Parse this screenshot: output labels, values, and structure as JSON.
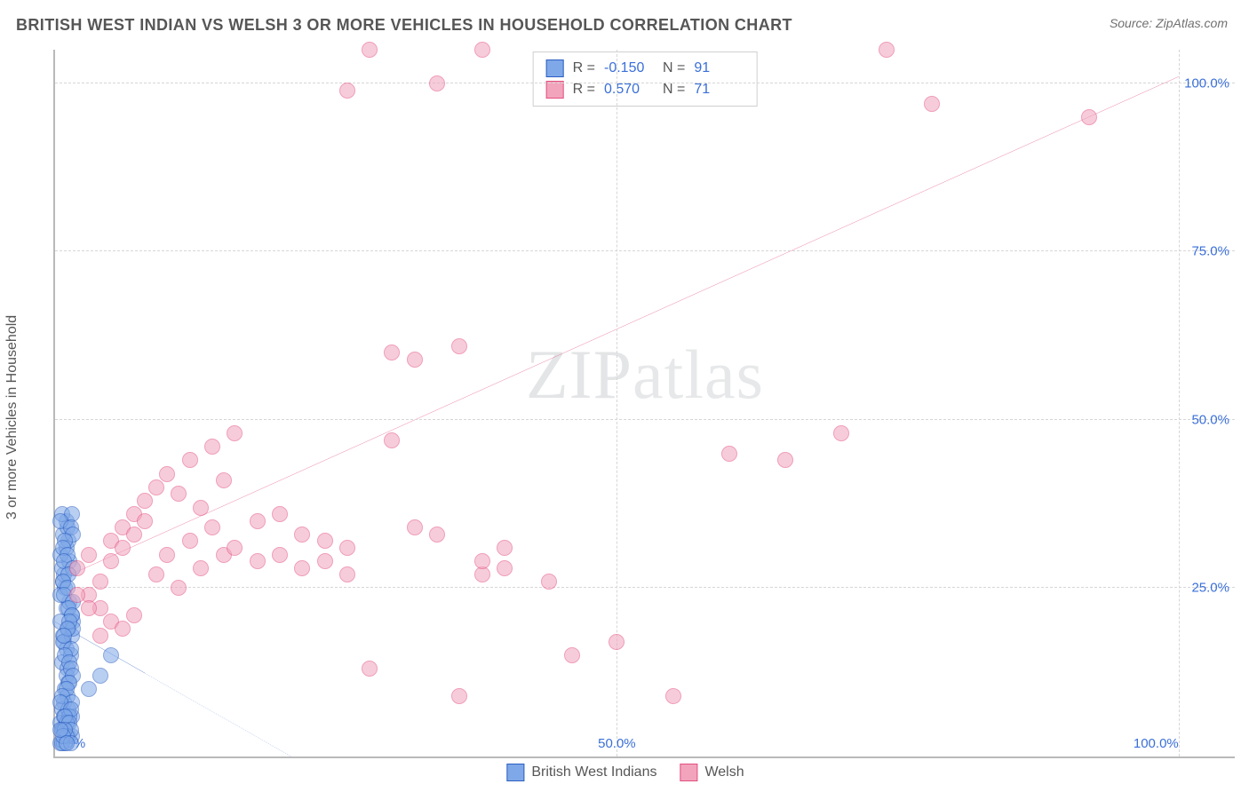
{
  "header": {
    "title": "BRITISH WEST INDIAN VS WELSH 3 OR MORE VEHICLES IN HOUSEHOLD CORRELATION CHART",
    "source": "Source: ZipAtlas.com"
  },
  "chart": {
    "type": "scatter",
    "ylabel": "3 or more Vehicles in Household",
    "watermark": "ZIPatlas",
    "background_color": "#ffffff",
    "grid_color": "#d6d6d6",
    "axis_color": "#b9b9b9",
    "tick_label_color": "#3a6fd8",
    "label_color": "#565656",
    "title_fontsize": 18,
    "label_fontsize": 16,
    "tick_fontsize": 15,
    "xlim": [
      0,
      105
    ],
    "ylim": [
      0,
      105
    ],
    "xticks": [
      0,
      50,
      100
    ],
    "yticks": [
      25,
      50,
      75,
      100
    ],
    "xtick_labels": [
      "0.0%",
      "50.0%",
      "100.0%"
    ],
    "ytick_labels": [
      "25.0%",
      "50.0%",
      "75.0%",
      "100.0%"
    ],
    "marker_radius": 9,
    "marker_opacity": 0.55,
    "marker_border_width": 1.2,
    "series": [
      {
        "name": "British West Indians",
        "fill": "#7fa8e8",
        "stroke": "#2c5fc1",
        "r": -0.15,
        "n": 91,
        "trend": {
          "x1": 0,
          "y1": 20,
          "x2": 21,
          "y2": 0,
          "solid_until_x": 8
        },
        "points": [
          [
            0.5,
            20
          ],
          [
            0.7,
            18
          ],
          [
            1.0,
            22
          ],
          [
            1.2,
            19
          ],
          [
            0.8,
            17
          ],
          [
            1.5,
            21
          ],
          [
            1.0,
            16
          ],
          [
            1.3,
            23
          ],
          [
            0.6,
            14
          ],
          [
            0.9,
            25
          ],
          [
            1.1,
            13
          ],
          [
            0.7,
            26
          ],
          [
            1.4,
            15
          ],
          [
            0.5,
            24
          ],
          [
            1.0,
            12
          ],
          [
            1.6,
            20
          ],
          [
            0.8,
            27
          ],
          [
            1.2,
            11
          ],
          [
            0.6,
            28
          ],
          [
            1.5,
            18
          ],
          [
            0.9,
            10
          ],
          [
            1.3,
            29
          ],
          [
            0.7,
            17
          ],
          [
            1.1,
            9
          ],
          [
            0.5,
            30
          ],
          [
            1.4,
            16
          ],
          [
            0.8,
            8
          ],
          [
            1.0,
            31
          ],
          [
            1.6,
            19
          ],
          [
            0.6,
            7
          ],
          [
            1.2,
            32
          ],
          [
            0.9,
            15
          ],
          [
            1.5,
            6
          ],
          [
            0.7,
            33
          ],
          [
            1.3,
            14
          ],
          [
            0.5,
            5
          ],
          [
            1.1,
            34
          ],
          [
            1.4,
            13
          ],
          [
            0.8,
            4
          ],
          [
            1.0,
            35
          ],
          [
            1.6,
            12
          ],
          [
            0.6,
            36
          ],
          [
            1.2,
            3
          ],
          [
            0.9,
            2
          ],
          [
            1.5,
            36
          ],
          [
            0.7,
            4
          ],
          [
            1.3,
            11
          ],
          [
            0.5,
            35
          ],
          [
            1.1,
            5
          ],
          [
            1.4,
            34
          ],
          [
            0.8,
            6
          ],
          [
            1.0,
            10
          ],
          [
            1.6,
            33
          ],
          [
            0.6,
            9
          ],
          [
            1.2,
            7
          ],
          [
            0.9,
            32
          ],
          [
            1.5,
            8
          ],
          [
            0.7,
            31
          ],
          [
            1.3,
            6
          ],
          [
            0.5,
            8
          ],
          [
            1.1,
            30
          ],
          [
            1.4,
            7
          ],
          [
            0.8,
            29
          ],
          [
            1.0,
            5
          ],
          [
            1.6,
            28
          ],
          [
            0.6,
            4
          ],
          [
            1.2,
            27
          ],
          [
            0.9,
            6
          ],
          [
            1.5,
            3
          ],
          [
            0.7,
            26
          ],
          [
            1.3,
            5
          ],
          [
            0.5,
            2
          ],
          [
            1.1,
            25
          ],
          [
            1.4,
            4
          ],
          [
            0.8,
            24
          ],
          [
            1.0,
            3
          ],
          [
            1.6,
            23
          ],
          [
            0.6,
            2
          ],
          [
            1.2,
            22
          ],
          [
            0.9,
            4
          ],
          [
            1.5,
            21
          ],
          [
            0.7,
            3
          ],
          [
            1.3,
            20
          ],
          [
            0.5,
            4
          ],
          [
            1.1,
            19
          ],
          [
            1.4,
            2
          ],
          [
            0.8,
            18
          ],
          [
            1.0,
            2
          ],
          [
            5.0,
            15
          ],
          [
            4.0,
            12
          ],
          [
            3.0,
            10
          ]
        ]
      },
      {
        "name": "Welsh",
        "fill": "#f2a4bd",
        "stroke": "#e3507f",
        "r": 0.57,
        "n": 71,
        "trend": {
          "x1": 0,
          "y1": 26,
          "x2": 100,
          "y2": 101
        },
        "points": [
          [
            2,
            28
          ],
          [
            3,
            30
          ],
          [
            4,
            26
          ],
          [
            5,
            32
          ],
          [
            3,
            24
          ],
          [
            6,
            34
          ],
          [
            4,
            22
          ],
          [
            7,
            36
          ],
          [
            5,
            29
          ],
          [
            8,
            38
          ],
          [
            6,
            31
          ],
          [
            9,
            40
          ],
          [
            7,
            33
          ],
          [
            10,
            42
          ],
          [
            8,
            35
          ],
          [
            11,
            39
          ],
          [
            9,
            27
          ],
          [
            12,
            44
          ],
          [
            10,
            30
          ],
          [
            13,
            37
          ],
          [
            11,
            25
          ],
          [
            14,
            46
          ],
          [
            12,
            32
          ],
          [
            15,
            41
          ],
          [
            13,
            28
          ],
          [
            16,
            48
          ],
          [
            14,
            34
          ],
          [
            18,
            35
          ],
          [
            15,
            30
          ],
          [
            20,
            36
          ],
          [
            16,
            31
          ],
          [
            22,
            33
          ],
          [
            18,
            29
          ],
          [
            24,
            32
          ],
          [
            20,
            30
          ],
          [
            26,
            31
          ],
          [
            22,
            28
          ],
          [
            28,
            13
          ],
          [
            24,
            29
          ],
          [
            30,
            60
          ],
          [
            26,
            27
          ],
          [
            32,
            59
          ],
          [
            28,
            105
          ],
          [
            34,
            100
          ],
          [
            30,
            47
          ],
          [
            36,
            9
          ],
          [
            32,
            34
          ],
          [
            38,
            27
          ],
          [
            34,
            33
          ],
          [
            40,
            31
          ],
          [
            36,
            61
          ],
          [
            44,
            26
          ],
          [
            38,
            29
          ],
          [
            46,
            15
          ],
          [
            40,
            28
          ],
          [
            50,
            17
          ],
          [
            55,
            9
          ],
          [
            60,
            45
          ],
          [
            65,
            44
          ],
          [
            70,
            48
          ],
          [
            74,
            105
          ],
          [
            78,
            97
          ],
          [
            92,
            95
          ],
          [
            38,
            105
          ],
          [
            26,
            99
          ],
          [
            5,
            20
          ],
          [
            4,
            18
          ],
          [
            3,
            22
          ],
          [
            6,
            19
          ],
          [
            2,
            24
          ],
          [
            7,
            21
          ]
        ]
      }
    ]
  },
  "legend": {
    "stats": [
      {
        "series_index": 0,
        "r_label": "R =",
        "n_label": "N ="
      },
      {
        "series_index": 1,
        "r_label": "R =",
        "n_label": "N ="
      }
    ]
  }
}
